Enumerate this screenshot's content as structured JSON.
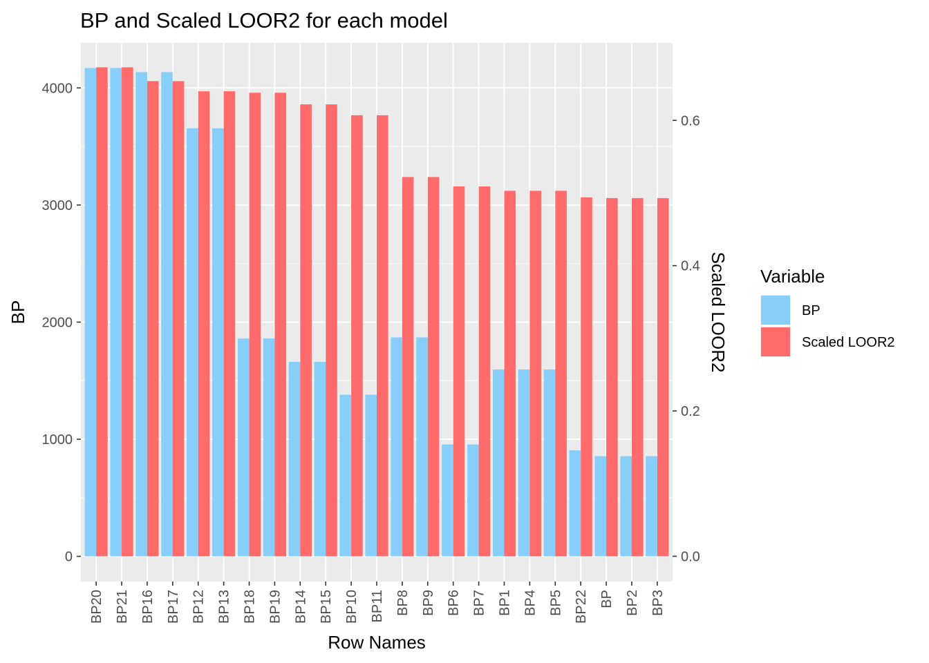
{
  "chart_data": {
    "type": "bar",
    "title": "BP and Scaled LOOR2 for each model",
    "xlabel": "Row Names",
    "ylabel": "BP",
    "y2label": "Scaled LOOR2",
    "categories": [
      "BP20",
      "BP21",
      "BP16",
      "BP17",
      "BP12",
      "BP13",
      "BP18",
      "BP19",
      "BP14",
      "BP15",
      "BP10",
      "BP11",
      "BP8",
      "BP9",
      "BP6",
      "BP7",
      "BP1",
      "BP4",
      "BP5",
      "BP22",
      "BP",
      "BP2",
      "BP3"
    ],
    "series": [
      {
        "name": "BP",
        "color": "#87CEFA",
        "axis": "left",
        "values": [
          4170,
          4170,
          4135,
          4135,
          3655,
          3655,
          1860,
          1860,
          1660,
          1660,
          1380,
          1380,
          1870,
          1870,
          955,
          955,
          1595,
          1595,
          1595,
          905,
          855,
          855,
          855
        ]
      },
      {
        "name": "Scaled LOOR2",
        "color": "#FF6B6B",
        "axis": "right",
        "values": [
          0.673,
          0.673,
          0.654,
          0.654,
          0.64,
          0.64,
          0.638,
          0.638,
          0.622,
          0.622,
          0.607,
          0.607,
          0.522,
          0.522,
          0.509,
          0.509,
          0.503,
          0.503,
          0.503,
          0.494,
          0.493,
          0.493,
          0.493
        ]
      }
    ],
    "ylim": [
      -215,
      4385
    ],
    "y_ticks": [
      0,
      1000,
      2000,
      3000,
      4000
    ],
    "y_tick_labels": [
      "0",
      "1000",
      "2000",
      "3000",
      "4000"
    ],
    "y2lim": [
      -0.0347,
      0.7067
    ],
    "y2_ticks": [
      0,
      0.2,
      0.4,
      0.6
    ],
    "y2_tick_labels": [
      "0.0",
      "0.2",
      "0.4",
      "0.6"
    ],
    "grid": true,
    "legend": {
      "title": "Variable",
      "placement": "right",
      "entries": [
        "BP",
        "Scaled LOOR2"
      ]
    }
  }
}
